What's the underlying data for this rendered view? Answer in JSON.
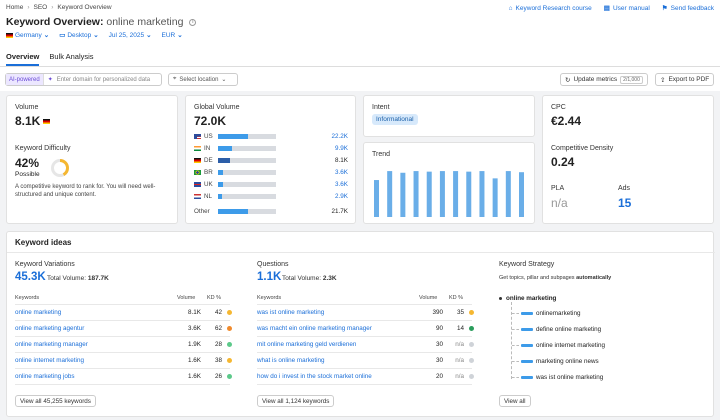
{
  "breadcrumb": [
    "Home",
    "SEO",
    "Keyword Overview"
  ],
  "top_links": {
    "course": "Keyword Research course",
    "manual": "User manual",
    "feedback": "Send feedback"
  },
  "title": {
    "prefix": "Keyword Overview:",
    "keyword": "online marketing"
  },
  "filters": {
    "country": "Germany",
    "device": "Desktop",
    "date": "Jul 25, 2025",
    "currency": "EUR"
  },
  "tabs": [
    "Overview",
    "Bulk Analysis"
  ],
  "toolbar": {
    "ai_badge": "AI-powered",
    "domain_placeholder": "Enter domain for personalized data",
    "location_placeholder": "Select location",
    "update_label": "Update metrics",
    "update_count": "2/1,000",
    "export_label": "Export to PDF"
  },
  "volume": {
    "label": "Volume",
    "value": "8.1K"
  },
  "difficulty": {
    "label": "Keyword Difficulty",
    "value": "42%",
    "percent": 42,
    "level": "Possible",
    "description": "A competitive keyword to rank for. You will need well-structured and unique content."
  },
  "global_volume": {
    "label": "Global Volume",
    "value": "72.0K",
    "rows": [
      {
        "code": "US",
        "value": "22.2K",
        "share": 0.52
      },
      {
        "code": "IN",
        "value": "9.9K",
        "share": 0.24
      },
      {
        "code": "DE",
        "value": "8.1K",
        "share": 0.2
      },
      {
        "code": "BR",
        "value": "3.6K",
        "share": 0.09
      },
      {
        "code": "UK",
        "value": "3.6K",
        "share": 0.09
      },
      {
        "code": "NL",
        "value": "2.9K",
        "share": 0.07
      }
    ],
    "other_label": "Other",
    "other_value": "21.7K",
    "other_share": 0.52
  },
  "intent": {
    "label": "Intent",
    "value": "Informational"
  },
  "trend": {
    "label": "Trend",
    "values": [
      0.66,
      0.82,
      0.79,
      0.82,
      0.81,
      0.82,
      0.82,
      0.81,
      0.82,
      0.69,
      0.82,
      0.8
    ]
  },
  "cpc": {
    "label": "CPC",
    "value": "€2.44"
  },
  "competitive_density": {
    "label": "Competitive Density",
    "value": "0.24"
  },
  "pla": {
    "label": "PLA",
    "value": "n/a"
  },
  "ads": {
    "label": "Ads",
    "value": "15"
  },
  "keyword_ideas": {
    "title": "Keyword ideas",
    "variations": {
      "label": "Keyword Variations",
      "count": "45.3K",
      "total_label": "Total Volume:",
      "total": "187.7K",
      "headers": [
        "Keywords",
        "Volume",
        "KD %"
      ],
      "rows": [
        {
          "keyword": "online marketing",
          "volume": "8.1K",
          "kd": "42",
          "color": "#f5b731"
        },
        {
          "keyword": "online marketing agentur",
          "volume": "3.6K",
          "kd": "62",
          "color": "#f08a2c"
        },
        {
          "keyword": "online marketing manager",
          "volume": "1.9K",
          "kd": "28",
          "color": "#5cc98a"
        },
        {
          "keyword": "online internet marketing",
          "volume": "1.6K",
          "kd": "38",
          "color": "#f5b731"
        },
        {
          "keyword": "online marketing jobs",
          "volume": "1.6K",
          "kd": "26",
          "color": "#5cc98a"
        }
      ],
      "button": "View all 45,255 keywords"
    },
    "questions": {
      "label": "Questions",
      "count": "1.1K",
      "total_label": "Total Volume:",
      "total": "2.3K",
      "headers": [
        "Keywords",
        "Volume",
        "KD %"
      ],
      "rows": [
        {
          "keyword": "was ist online marketing",
          "volume": "390",
          "kd": "35",
          "color": "#f5b731"
        },
        {
          "keyword": "was macht ein online marketing manager",
          "volume": "90",
          "kd": "14",
          "color": "#2a9d5c"
        },
        {
          "keyword": "mit online marketing geld verdienen",
          "volume": "30",
          "kd": "n/a",
          "color": "#cfd3d8"
        },
        {
          "keyword": "what is online marketing",
          "volume": "30",
          "kd": "n/a",
          "color": "#cfd3d8"
        },
        {
          "keyword": "how do i invest in the stock market online",
          "volume": "20",
          "kd": "n/a",
          "color": "#cfd3d8"
        }
      ],
      "button": "View all 1,124 keywords"
    },
    "strategy": {
      "label": "Keyword Strategy",
      "subtitle_prefix": "Get topics, pillar and subpages",
      "subtitle_bold": "automatically",
      "root": "online marketing",
      "items": [
        "onlinemarketing",
        "define online marketing",
        "online internet marketing",
        "marketing online news",
        "was ist online marketing"
      ],
      "button": "View all"
    }
  }
}
